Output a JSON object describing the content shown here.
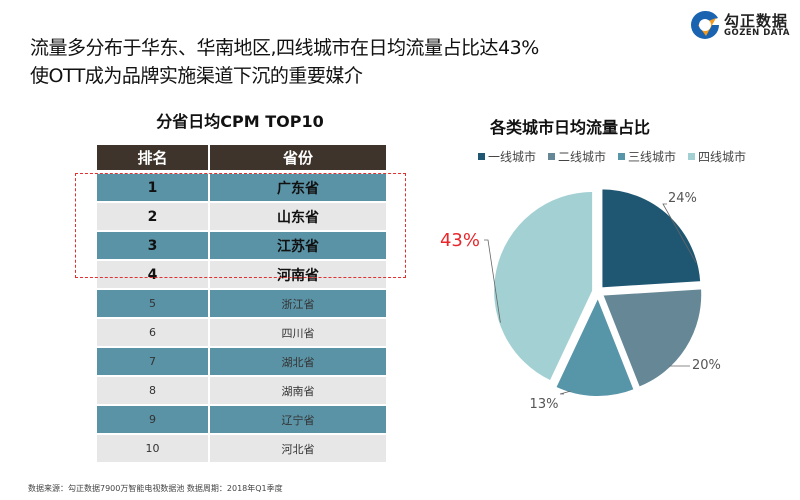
{
  "headline": {
    "line1": "流量多分布于华东、华南地区,四线城市在日均流量占比达43%",
    "line2": "使OTT成为品牌实施渠道下沉的重要媒介"
  },
  "logo": {
    "cn": "勾正数据",
    "en": "GOZEN DATA"
  },
  "table": {
    "title": "分省日均CPM TOP10",
    "headers": [
      "排名",
      "省份"
    ],
    "rows": [
      {
        "rank": "1",
        "province": "广东省"
      },
      {
        "rank": "2",
        "province": "山东省"
      },
      {
        "rank": "3",
        "province": "江苏省"
      },
      {
        "rank": "4",
        "province": "河南省"
      },
      {
        "rank": "5",
        "province": "浙江省"
      },
      {
        "rank": "6",
        "province": "四川省"
      },
      {
        "rank": "7",
        "province": "湖北省"
      },
      {
        "rank": "8",
        "province": "湖南省"
      },
      {
        "rank": "9",
        "province": "辽宁省"
      },
      {
        "rank": "10",
        "province": "河北省"
      }
    ]
  },
  "source": "数据来源：勾正数据7900万智能电视数据池  数据周期：2018年Q1季度",
  "chart_data": {
    "type": "pie",
    "title": "各类城市日均流量占比",
    "legend_position": "top",
    "categories": [
      "一线城市",
      "二线城市",
      "三线城市",
      "四线城市"
    ],
    "values": [
      24,
      20,
      13,
      43
    ],
    "labels": [
      "24%",
      "20%",
      "13%",
      "43%"
    ],
    "colors": [
      "#1f5773",
      "#658796",
      "#5795a8",
      "#a3d1d3"
    ],
    "highlight_label_color": "#e8262b",
    "highlight_index": 3
  }
}
